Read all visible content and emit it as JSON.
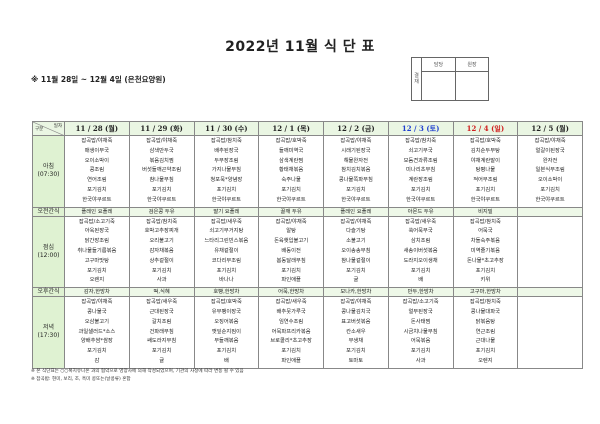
{
  "title": "2022년 11월 식 단 표",
  "approval": {
    "label": "결재",
    "cols": [
      "담당",
      "원장"
    ]
  },
  "subtitle": "※ 11월 28일 ~ 12월 4일 (은천요양원)",
  "corner": {
    "top": "일자",
    "bottom": "구분"
  },
  "colors": {
    "saturday": "#1f3fd0",
    "sunday": "#d02020",
    "header_bg": "#eaf6e3"
  },
  "days": [
    "11 / 28 (월)",
    "11 / 29 (화)",
    "11 / 30 (수)",
    "12 / 1 (목)",
    "12 / 2 (금)",
    "12 / 3 (토)",
    "12 / 4 (일)",
    "12 / 5 (월)"
  ],
  "rows": {
    "breakfast": {
      "label": "아침",
      "time": "(07:30)",
      "items": [
        [
          "잡곡밥/야채죽",
          "매생이무국",
          "오이소박이",
          "콩조림",
          "연어조림",
          "포기김치",
          "한국야쿠르트"
        ],
        [
          "잡곡밥/야채죽",
          "삼색만두국",
          "볶음김치찜",
          "버섯들깨곤약조림",
          "참나물무침",
          "포기김치",
          "한국야쿠르트"
        ],
        [
          "잡곡밥/참치죽",
          "배추된장국",
          "두부장조림",
          "가지나물무침",
          "청포묵*양념장",
          "포기김치",
          "한국야쿠르트"
        ],
        [
          "잡곡밥/호박죽",
          "들깨미역국",
          "삼색계란찜",
          "황태채볶음",
          "숙주나물",
          "포기김치",
          "한국야쿠르트"
        ],
        [
          "잡곡밥/야채죽",
          "시래기된장국",
          "해물완자전",
          "참치김치볶음",
          "콩나물쪽파무침",
          "포기김치",
          "한국야쿠르트"
        ],
        [
          "잡곡밥/참치죽",
          "쇠고기무국",
          "모둠견과류조림",
          "미나리초무침",
          "계란장조림",
          "포기김치",
          "한국야쿠르트"
        ],
        [
          "잡곡밥/호박죽",
          "김치순두부탕",
          "야채계란말이",
          "탕평나물",
          "적어무조림",
          "포기김치",
          "한국야쿠르트"
        ],
        [
          "잡곡밥/야채죽",
          "얼갈이된장국",
          "완자전",
          "일본식무조림",
          "오이소박이",
          "포기김치",
          "한국야쿠르트"
        ]
      ]
    },
    "am_snack": {
      "label": "오전간식",
      "items": [
        "플레인 요플레",
        "검은콩 두유",
        "딸기 요플레",
        "꿀깨 두유",
        "플레인 요플레",
        "아몬드 두유",
        "비지밀",
        ""
      ]
    },
    "lunch": {
      "label": "점심",
      "time": "(12:00)",
      "items": [
        [
          "잡곡밥/소고기죽",
          "아욱된장국",
          "닭간장조림",
          "취나물들기름볶음",
          "고구마맛탕",
          "포기김치",
          "오렌지"
        ],
        [
          "잡곡밥/참치죽",
          "호박고추장찌개",
          "오리불고기",
          "감자채볶음",
          "상추겉절이",
          "포기김치",
          "사과"
        ],
        [
          "잡곡밥/새우죽",
          "쇠고기무거지탕",
          "느타리그린빈스볶음",
          "유채겉절이",
          "코다리무조림",
          "포기김치",
          "바나나"
        ],
        [
          "잡곡밥/야채죽",
          "알탕",
          "돈육햇입불고기",
          "배동이전",
          "봄동달래무침",
          "포기김치",
          "파인애플"
        ],
        [
          "잡곡밥/야채죽",
          "다슬기탕",
          "소불고기",
          "오이송송무침",
          "참나물겉절이",
          "포기김치",
          "귤"
        ],
        [
          "잡곡밥/새우죽",
          "쑥어묵무국",
          "삼치조림",
          "새송이버섯볶음",
          "도라지오이생채",
          "포기김치",
          "배"
        ],
        [
          "잡곡밥/참치죽",
          "어묵국",
          "차돌숙주볶음",
          "미역줄기볶음",
          "돈나물*초고추장",
          "포기김치",
          "키위"
        ],
        [
          "",
          "",
          "",
          "",
          "",
          "",
          ""
        ]
      ]
    },
    "pm_snack": {
      "label": "오후간식",
      "items": [
        "감자,한방차",
        "떡,식혜",
        "호빵,한방차",
        "어묵,한방차",
        "모나카,한방차",
        "만두,한방차",
        "고구마,한방차",
        ""
      ]
    },
    "dinner": {
      "label": "저녁",
      "time": "(17:30)",
      "items": [
        [
          "잡곡밥/야채죽",
          "콩나물국",
          "오삼불고기",
          "과일샐러드*소스",
          "양배추쌈*쌈장",
          "포기김치",
          "감"
        ],
        [
          "잡곡밥/새우죽",
          "근대된장국",
          "갈치조림",
          "건파래무침",
          "쌔도라지무침",
          "포기김치",
          "귤"
        ],
        [
          "잡곡밥/호박죽",
          "유부팽이장국",
          "오징어볶음",
          "깻잎순지짐이",
          "무들깨볶음",
          "포기김치",
          "배"
        ],
        [
          "잡곡밥/새우죽",
          "배추뭇가루국",
          "임연수조림",
          "어묵파프리카볶음",
          "브로콜리*초고추장",
          "포기김치",
          "파인애플"
        ],
        [
          "잡곡밥/야채죽",
          "콩나물김치국",
          "표고버섯볶음",
          "칸소새우",
          "무생채",
          "포기김치",
          "토마토"
        ],
        [
          "잡곡밥/소고기죽",
          "얼무된장국",
          "돈사태찜",
          "시금치나물무침",
          "어묵볶음",
          "포기김치",
          "사과"
        ],
        [
          "잡곡밥/참치죽",
          "콩나물대파국",
          "닭볶음탕",
          "연근조림",
          "근대나물",
          "포기김치",
          "오렌지"
        ],
        [
          "",
          "",
          "",
          "",
          "",
          "",
          ""
        ]
      ]
    }
  },
  "notes": [
    "※ 본 식단표는 ○○복지유니온 과의 협약으로 영양사에 의해 작성되었으며, 기관의 사정에 따라 변동 될 수 있음",
    "※ 잡곡밥: 현미, 보리, 조, 흑미 콩또는(날콩류) 혼합"
  ]
}
